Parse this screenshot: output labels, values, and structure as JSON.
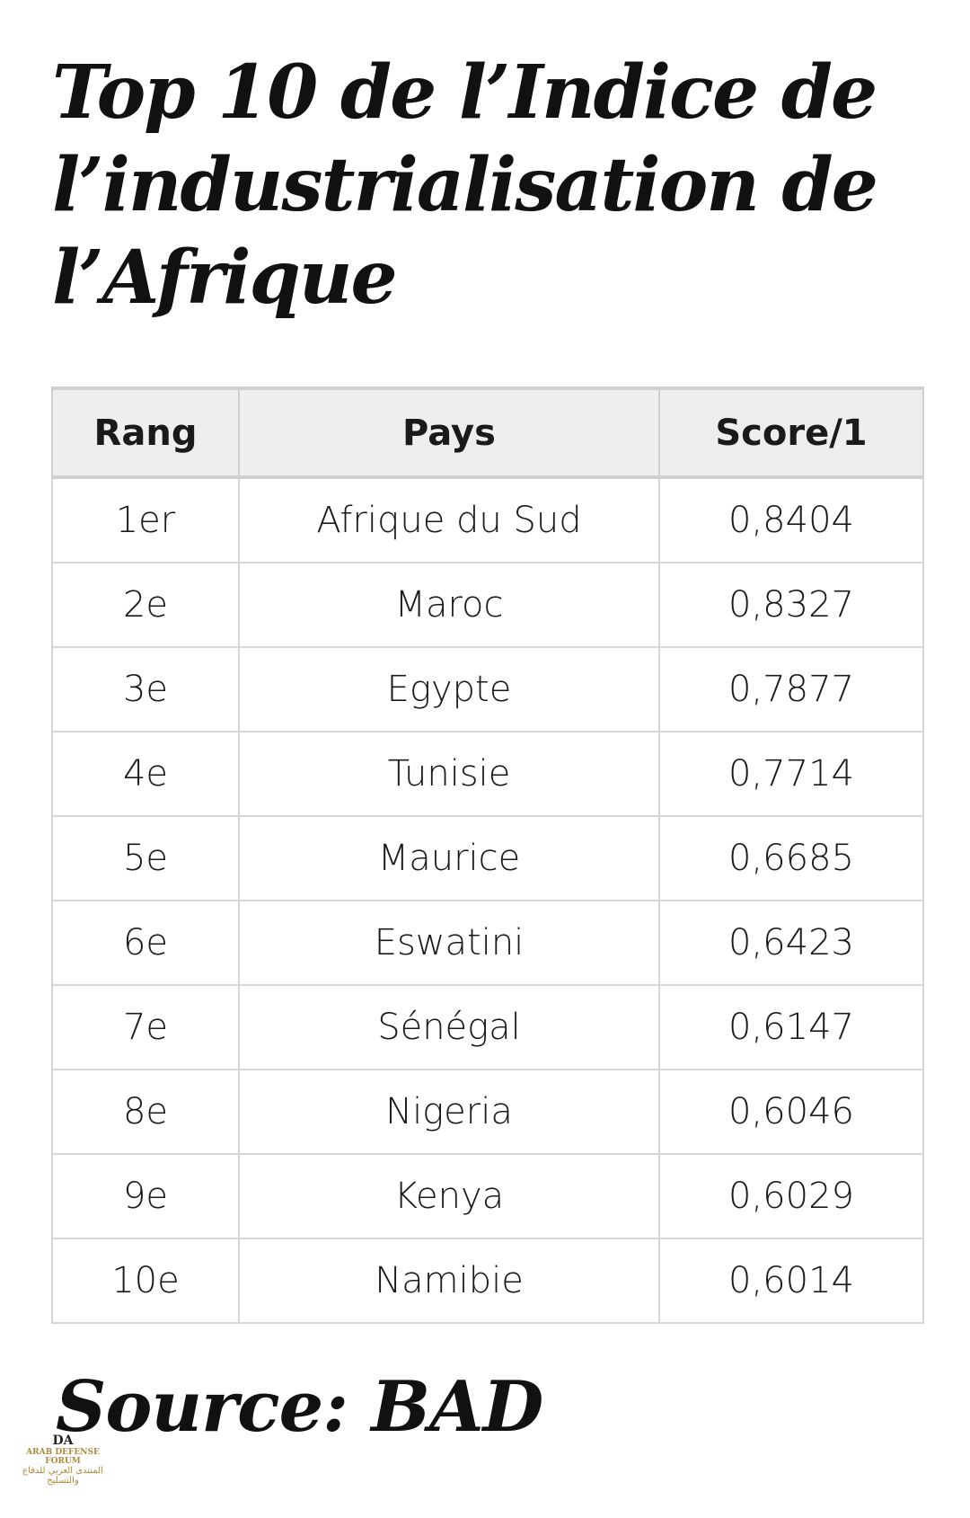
{
  "header": {
    "title_lines": [
      "Top 10 de l’Indice de",
      "l’industrialisation de",
      "l’Afrique"
    ]
  },
  "table": {
    "columns": [
      "Rang",
      "Pays",
      "Score/1"
    ],
    "rows": [
      [
        "1er",
        "Afrique du Sud",
        "0,8404"
      ],
      [
        "2e",
        "Maroc",
        "0,8327"
      ],
      [
        "3e",
        "Egypte",
        "0,7877"
      ],
      [
        "4e",
        "Tunisie",
        "0,7714"
      ],
      [
        "5e",
        "Maurice",
        "0,6685"
      ],
      [
        "6e",
        "Eswatini",
        "0,6423"
      ],
      [
        "7e",
        "Sénégal",
        "0,6147"
      ],
      [
        "8e",
        "Nigeria",
        "0,6046"
      ],
      [
        "9e",
        "Kenya",
        "0,6029"
      ],
      [
        "10e",
        "Namibie",
        "0,6014"
      ]
    ]
  },
  "footer": {
    "source": "Source: BAD"
  },
  "watermark": {
    "logo": "DA",
    "name": "ARAB DEFENSE FORUM",
    "arabic": "المنتدى العربي للدفاع والتسليح"
  }
}
